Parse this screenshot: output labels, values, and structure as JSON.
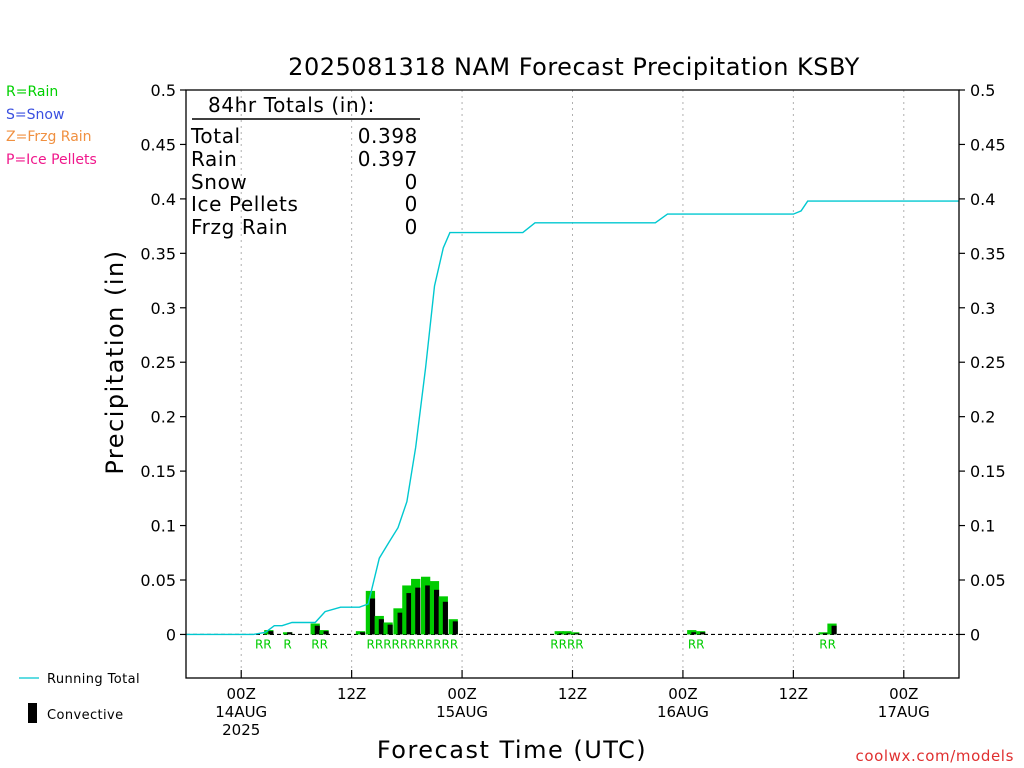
{
  "credit": "coolwx.com/models",
  "legend_top": [
    {
      "text": "R=Rain",
      "color": "#00d000"
    },
    {
      "text": "S=Snow",
      "color": "#3a4fe0"
    },
    {
      "text": "Z=Frzg Rain",
      "color": "#f09040"
    },
    {
      "text": "P=Ice Pellets",
      "color": "#f0188c"
    }
  ],
  "legend_bottom": {
    "running_total": "Running Total",
    "convective": "Convective"
  },
  "totals_box": {
    "header": "84hr Totals (in):",
    "rows": [
      {
        "label": "Total",
        "value": "0.398"
      },
      {
        "label": "Rain",
        "value": "0.397"
      },
      {
        "label": "Snow",
        "value": "0"
      },
      {
        "label": "Ice Pellets",
        "value": "0"
      },
      {
        "label": "Frzg Rain",
        "value": "0"
      }
    ]
  },
  "colors": {
    "rain_bar": "#00cc00",
    "convective_bar": "#000000",
    "running_total_line": "#00c8d0",
    "grid": "#b0b0b0"
  },
  "chart_data": {
    "type": "bar",
    "title": "2025081318 NAM Forecast Precipitation KSBY",
    "xlabel": "Forecast Time (UTC)",
    "ylabel": "Precipitation (in)",
    "ylim": [
      -0.04,
      0.5
    ],
    "y_ticks": [
      0,
      0.05,
      0.1,
      0.15,
      0.2,
      0.25,
      0.3,
      0.35,
      0.4,
      0.45,
      0.5
    ],
    "y_tick_labels": [
      "0",
      "0.05",
      "0.1",
      "0.15",
      "0.2",
      "0.25",
      "0.3",
      "0.35",
      "0.4",
      "0.45",
      "0.5"
    ],
    "xlim_hours": [
      -5,
      65
    ],
    "x_ticks": [
      {
        "hour": 0,
        "lines": [
          "00Z",
          "14AUG",
          "2025"
        ]
      },
      {
        "hour": 10,
        "lines": [
          "12Z"
        ]
      },
      {
        "hour": 20,
        "lines": [
          "00Z",
          "15AUG"
        ]
      },
      {
        "hour": 30,
        "lines": [
          "12Z"
        ]
      },
      {
        "hour": 40,
        "lines": [
          "00Z",
          "16AUG"
        ]
      },
      {
        "hour": 50,
        "lines": [
          "12Z"
        ]
      },
      {
        "hour": 60,
        "lines": [
          "00Z",
          "17AUG"
        ]
      }
    ],
    "grid": true,
    "series": [
      {
        "name": "Rain",
        "kind": "bars",
        "points": [
          {
            "hour": 2.5,
            "value": 0.004,
            "convective": 0.003
          },
          {
            "hour": 4.2,
            "value": 0.002,
            "convective": 0.002
          },
          {
            "hour": 6.7,
            "value": 0.01,
            "convective": 0.008
          },
          {
            "hour": 7.5,
            "value": 0.004,
            "convective": 0.003
          },
          {
            "hour": 10.8,
            "value": 0.003,
            "convective": 0.002
          },
          {
            "hour": 11.7,
            "value": 0.04,
            "convective": 0.033
          },
          {
            "hour": 12.5,
            "value": 0.017,
            "convective": 0.014
          },
          {
            "hour": 13.3,
            "value": 0.011,
            "convective": 0.009
          },
          {
            "hour": 14.2,
            "value": 0.024,
            "convective": 0.02
          },
          {
            "hour": 15.0,
            "value": 0.045,
            "convective": 0.038
          },
          {
            "hour": 15.8,
            "value": 0.051,
            "convective": 0.043
          },
          {
            "hour": 16.7,
            "value": 0.053,
            "convective": 0.045
          },
          {
            "hour": 17.5,
            "value": 0.049,
            "convective": 0.041
          },
          {
            "hour": 18.3,
            "value": 0.035,
            "convective": 0.03
          },
          {
            "hour": 19.2,
            "value": 0.014,
            "convective": 0.012
          },
          {
            "hour": 28.8,
            "value": 0.003,
            "convective": 0.001
          },
          {
            "hour": 29.5,
            "value": 0.003,
            "convective": 0.001
          },
          {
            "hour": 30.2,
            "value": 0.002,
            "convective": 0.001
          },
          {
            "hour": 40.8,
            "value": 0.004,
            "convective": 0.002
          },
          {
            "hour": 41.6,
            "value": 0.003,
            "convective": 0.002
          },
          {
            "hour": 52.7,
            "value": 0.002,
            "convective": 0.001
          },
          {
            "hour": 53.5,
            "value": 0.01,
            "convective": 0.008
          }
        ]
      },
      {
        "name": "Running Total",
        "kind": "line",
        "x": [
          -5,
          0,
          1.1,
          2.2,
          3.0,
          3.7,
          4.6,
          5.7,
          6.7,
          7.6,
          9.0,
          10.7,
          11.5,
          12.5,
          13.4,
          14.2,
          15.0,
          15.8,
          16.7,
          17.5,
          18.3,
          18.9,
          24.0,
          25.5,
          26.6,
          37.5,
          38.6,
          50.0,
          50.7,
          51.3,
          65
        ],
        "y": [
          0,
          0,
          0,
          0.002,
          0.008,
          0.008,
          0.011,
          0.011,
          0.011,
          0.021,
          0.025,
          0.025,
          0.028,
          0.07,
          0.085,
          0.098,
          0.122,
          0.172,
          0.245,
          0.32,
          0.355,
          0.369,
          0.369,
          0.369,
          0.378,
          0.378,
          0.386,
          0.386,
          0.389,
          0.398,
          0.398
        ]
      }
    ],
    "ptype_labels": [
      {
        "hour": 2.0,
        "text": "RR"
      },
      {
        "hour": 4.2,
        "text": "R"
      },
      {
        "hour": 7.1,
        "text": "RR"
      },
      {
        "hour": 15.5,
        "text": "RRRRRRRRRRR"
      },
      {
        "hour": 29.5,
        "text": "RRRR"
      },
      {
        "hour": 41.2,
        "text": "RR"
      },
      {
        "hour": 53.1,
        "text": "RR"
      }
    ]
  }
}
